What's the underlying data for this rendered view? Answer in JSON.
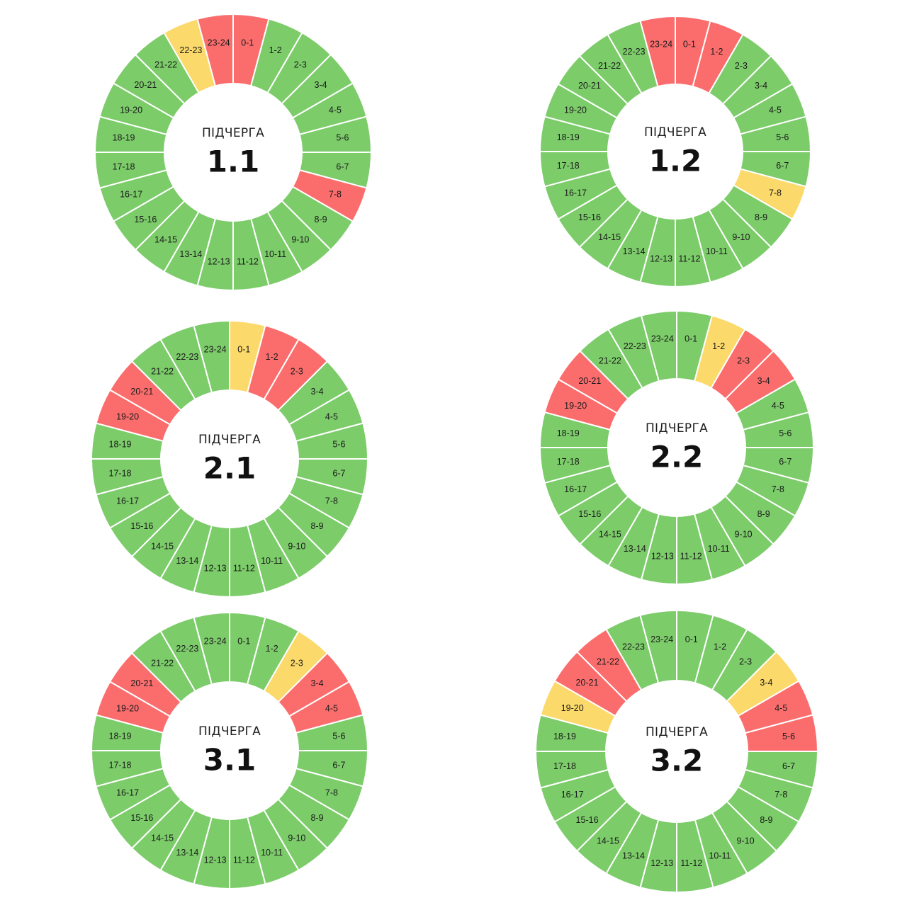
{
  "colors": {
    "on": "#7ccc6a",
    "off": "#fb6d6d",
    "maybe": "#fbd96a",
    "separator": "#ffffff"
  },
  "hour_labels": [
    "0-1",
    "1-2",
    "2-3",
    "3-4",
    "4-5",
    "5-6",
    "6-7",
    "7-8",
    "8-9",
    "9-10",
    "10-11",
    "11-12",
    "12-13",
    "13-14",
    "14-15",
    "15-16",
    "16-17",
    "17-18",
    "18-19",
    "19-20",
    "20-21",
    "21-22",
    "22-23",
    "23-24"
  ],
  "chart_data": [
    {
      "type": "donut",
      "title": "ПІДЧЕРГА",
      "queue": "1.1",
      "categories": [
        "0-1",
        "1-2",
        "2-3",
        "3-4",
        "4-5",
        "5-6",
        "6-7",
        "7-8",
        "8-9",
        "9-10",
        "10-11",
        "11-12",
        "12-13",
        "13-14",
        "14-15",
        "15-16",
        "16-17",
        "17-18",
        "18-19",
        "19-20",
        "20-21",
        "21-22",
        "22-23",
        "23-24"
      ],
      "status": [
        "off",
        "on",
        "on",
        "on",
        "on",
        "on",
        "on",
        "off",
        "on",
        "on",
        "on",
        "on",
        "on",
        "on",
        "on",
        "on",
        "on",
        "on",
        "on",
        "on",
        "on",
        "on",
        "maybe",
        "off"
      ]
    },
    {
      "type": "donut",
      "title": "ПІДЧЕРГА",
      "queue": "1.2",
      "categories": [
        "0-1",
        "1-2",
        "2-3",
        "3-4",
        "4-5",
        "5-6",
        "6-7",
        "7-8",
        "8-9",
        "9-10",
        "10-11",
        "11-12",
        "12-13",
        "13-14",
        "14-15",
        "15-16",
        "16-17",
        "17-18",
        "18-19",
        "19-20",
        "20-21",
        "21-22",
        "22-23",
        "23-24"
      ],
      "status": [
        "off",
        "off",
        "on",
        "on",
        "on",
        "on",
        "on",
        "maybe",
        "on",
        "on",
        "on",
        "on",
        "on",
        "on",
        "on",
        "on",
        "on",
        "on",
        "on",
        "on",
        "on",
        "on",
        "on",
        "off"
      ]
    },
    {
      "type": "donut",
      "title": "ПІДЧЕРГА",
      "queue": "2.1",
      "categories": [
        "0-1",
        "1-2",
        "2-3",
        "3-4",
        "4-5",
        "5-6",
        "6-7",
        "7-8",
        "8-9",
        "9-10",
        "10-11",
        "11-12",
        "12-13",
        "13-14",
        "14-15",
        "15-16",
        "16-17",
        "17-18",
        "18-19",
        "19-20",
        "20-21",
        "21-22",
        "22-23",
        "23-24"
      ],
      "status": [
        "maybe",
        "off",
        "off",
        "on",
        "on",
        "on",
        "on",
        "on",
        "on",
        "on",
        "on",
        "on",
        "on",
        "on",
        "on",
        "on",
        "on",
        "on",
        "on",
        "off",
        "off",
        "on",
        "on",
        "on"
      ]
    },
    {
      "type": "donut",
      "title": "ПІДЧЕРГА",
      "queue": "2.2",
      "categories": [
        "0-1",
        "1-2",
        "2-3",
        "3-4",
        "4-5",
        "5-6",
        "6-7",
        "7-8",
        "8-9",
        "9-10",
        "10-11",
        "11-12",
        "12-13",
        "13-14",
        "14-15",
        "15-16",
        "16-17",
        "17-18",
        "18-19",
        "19-20",
        "20-21",
        "21-22",
        "22-23",
        "23-24"
      ],
      "status": [
        "on",
        "maybe",
        "off",
        "off",
        "on",
        "on",
        "on",
        "on",
        "on",
        "on",
        "on",
        "on",
        "on",
        "on",
        "on",
        "on",
        "on",
        "on",
        "on",
        "off",
        "off",
        "on",
        "on",
        "on"
      ]
    },
    {
      "type": "donut",
      "title": "ПІДЧЕРГА",
      "queue": "3.1",
      "categories": [
        "0-1",
        "1-2",
        "2-3",
        "3-4",
        "4-5",
        "5-6",
        "6-7",
        "7-8",
        "8-9",
        "9-10",
        "10-11",
        "11-12",
        "12-13",
        "13-14",
        "14-15",
        "15-16",
        "16-17",
        "17-18",
        "18-19",
        "19-20",
        "20-21",
        "21-22",
        "22-23",
        "23-24"
      ],
      "status": [
        "on",
        "on",
        "maybe",
        "off",
        "off",
        "on",
        "on",
        "on",
        "on",
        "on",
        "on",
        "on",
        "on",
        "on",
        "on",
        "on",
        "on",
        "on",
        "on",
        "off",
        "off",
        "on",
        "on",
        "on"
      ]
    },
    {
      "type": "donut",
      "title": "ПІДЧЕРГА",
      "queue": "3.2",
      "categories": [
        "0-1",
        "1-2",
        "2-3",
        "3-4",
        "4-5",
        "5-6",
        "6-7",
        "7-8",
        "8-9",
        "9-10",
        "10-11",
        "11-12",
        "12-13",
        "13-14",
        "14-15",
        "15-16",
        "16-17",
        "17-18",
        "18-19",
        "19-20",
        "20-21",
        "21-22",
        "22-23",
        "23-24"
      ],
      "status": [
        "on",
        "on",
        "on",
        "maybe",
        "off",
        "off",
        "on",
        "on",
        "on",
        "on",
        "on",
        "on",
        "on",
        "on",
        "on",
        "on",
        "on",
        "on",
        "on",
        "maybe",
        "off",
        "off",
        "on",
        "on"
      ]
    }
  ]
}
